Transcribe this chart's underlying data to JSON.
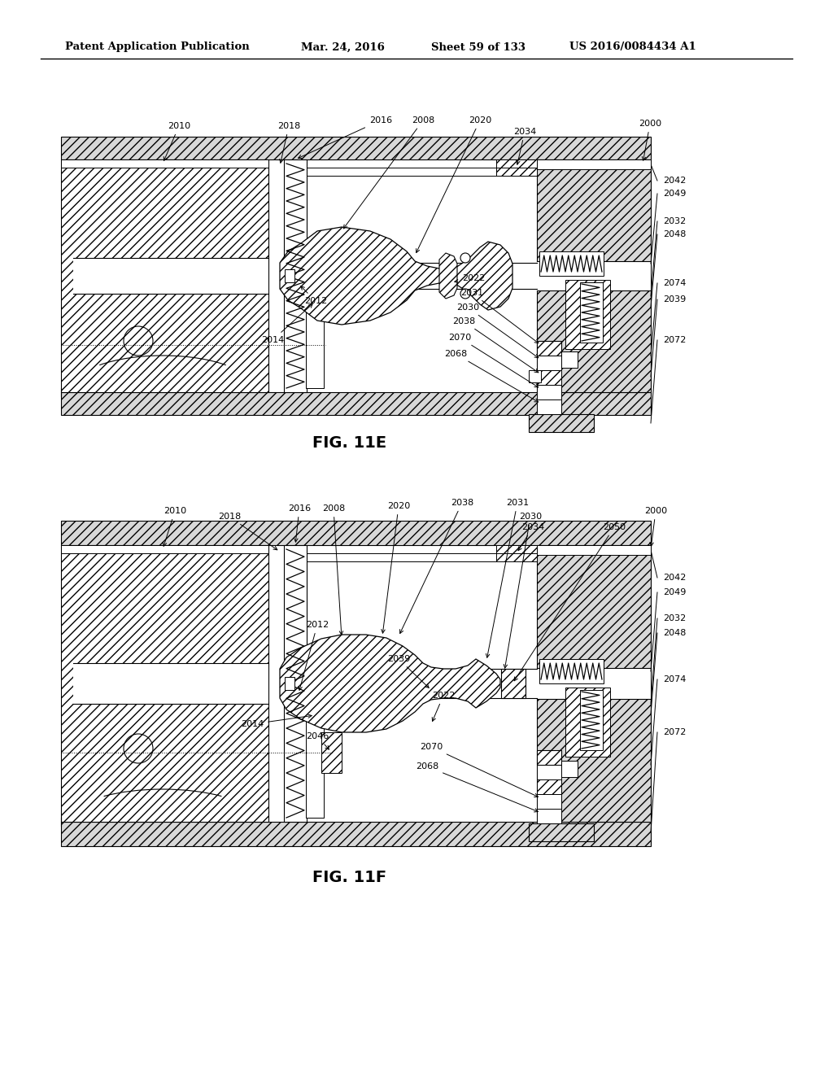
{
  "bg_color": "#ffffff",
  "fig_width": 10.24,
  "fig_height": 13.2,
  "dpi": 100,
  "header_text": "Patent Application Publication",
  "header_date": "Mar. 24, 2016",
  "header_sheet": "Sheet 59 of 133",
  "header_patent": "US 2016/0084434 A1",
  "fig1_label": "FIG. 11E",
  "fig2_label": "FIG. 11F",
  "ref_fontsize": 8.0,
  "hatch_density": "///",
  "line_color": "#000000",
  "gray_fill": "#d8d8d8",
  "white_fill": "#ffffff"
}
